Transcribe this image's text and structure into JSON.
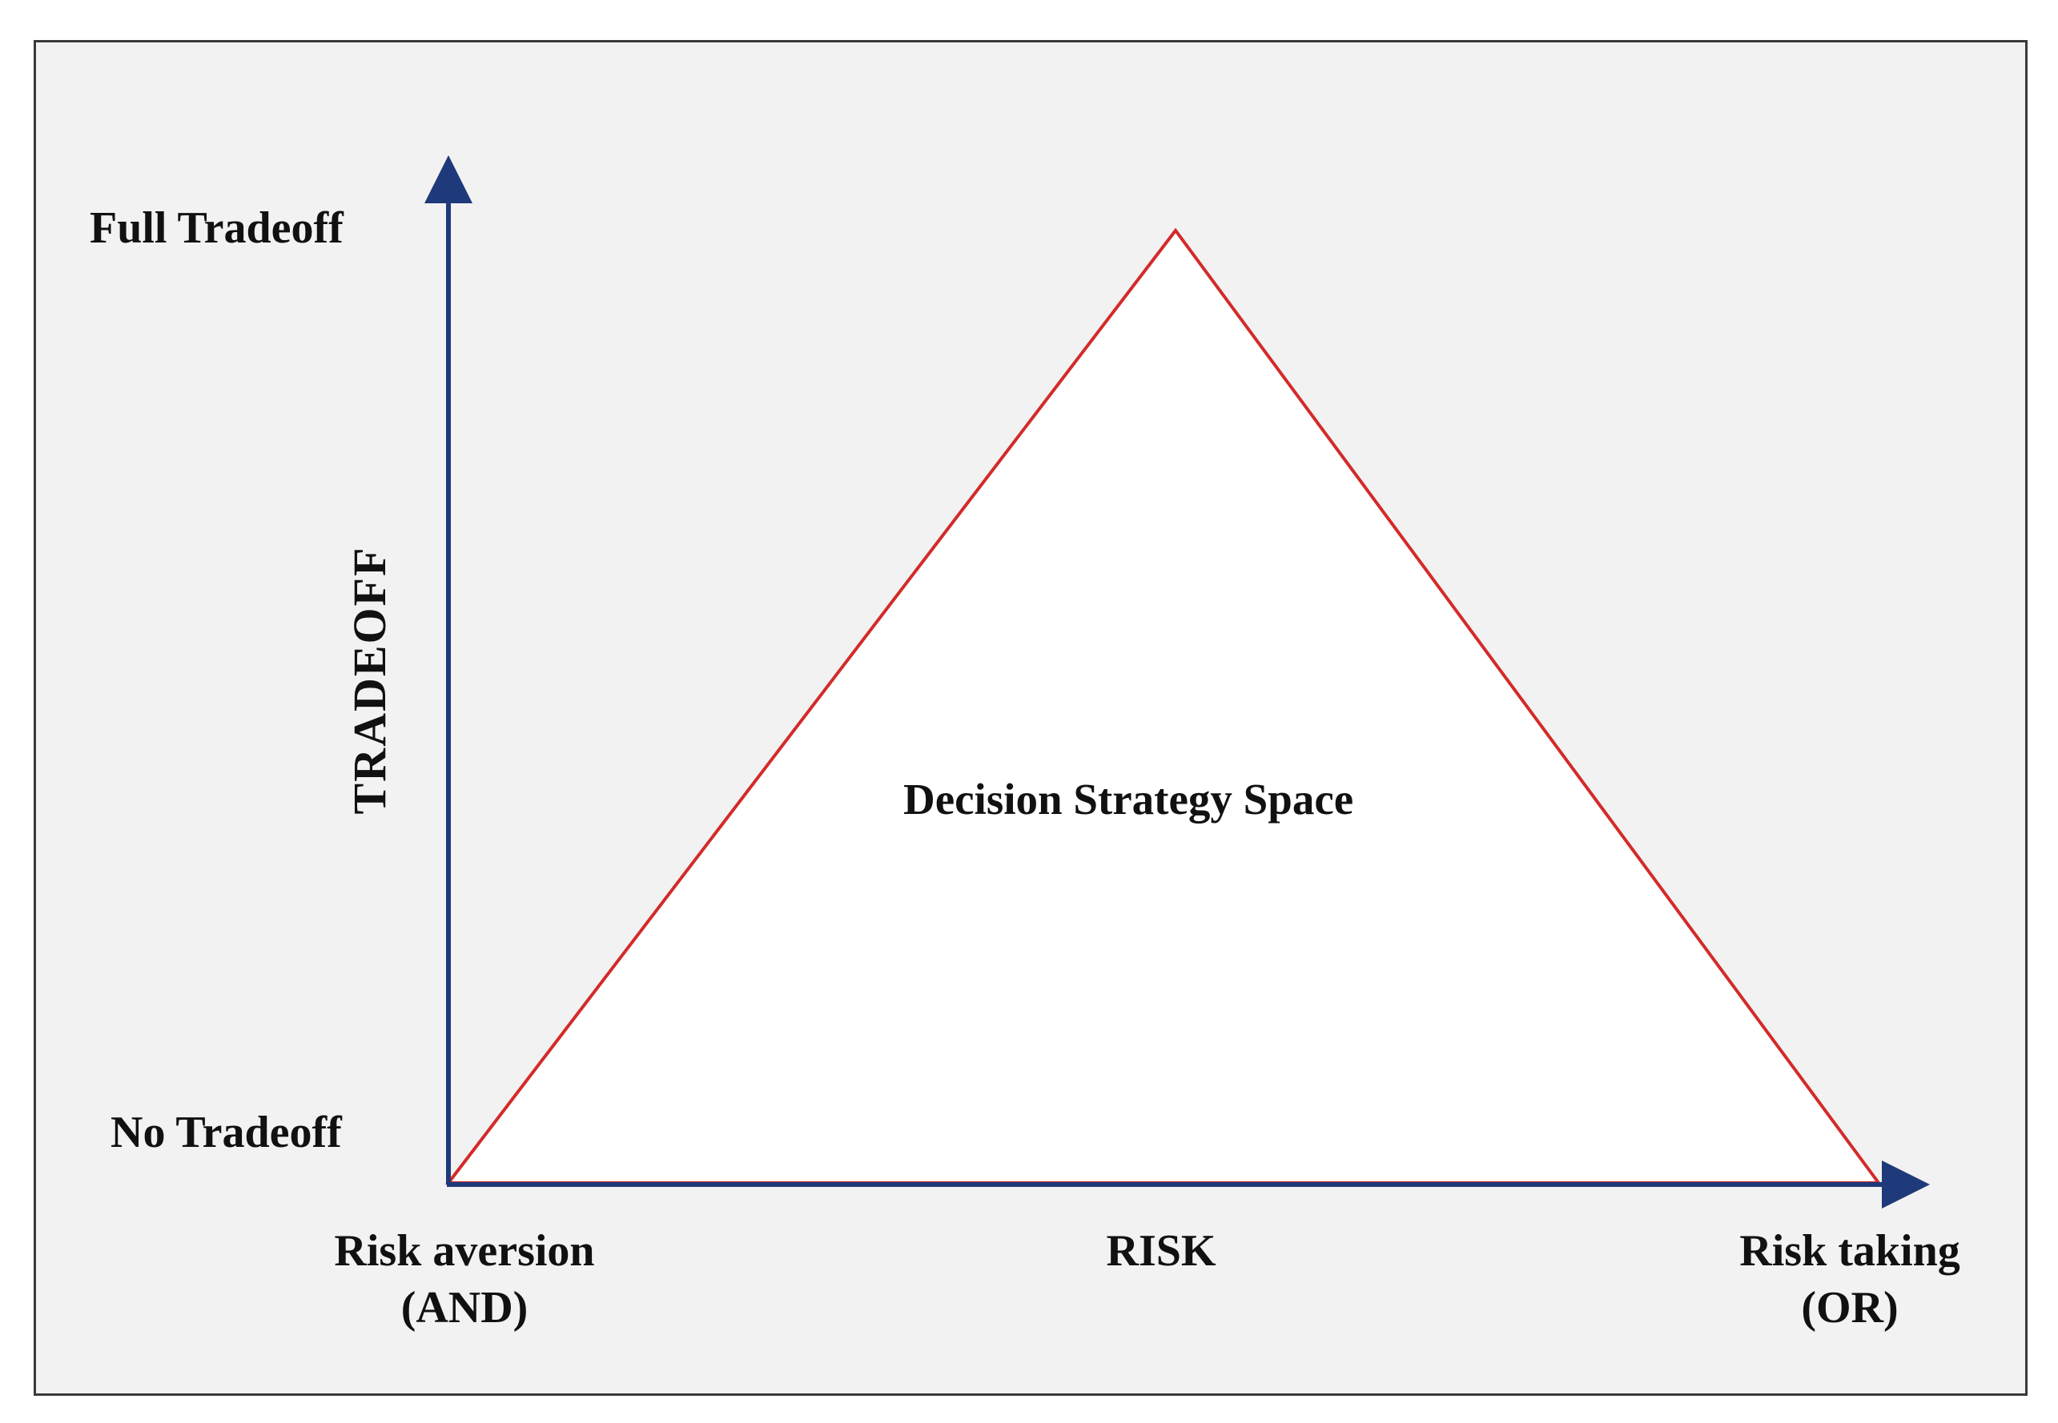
{
  "labels": {
    "y_top": "Full Tradeoff",
    "y_bottom": "No Tradeoff",
    "y_axis": "TRADEOFF",
    "x_left_line1": "Risk aversion",
    "x_left_line2": "(AND)",
    "x_axis": "RISK",
    "x_right_line1": "Risk taking",
    "x_right_line2": "(OR)",
    "region": "Decision Strategy Space"
  },
  "colors": {
    "axis": "#1f3a7a",
    "triangle_stroke": "#d42a2a",
    "triangle_fill": "#ffffff",
    "panel_background": "#f2f2f2"
  }
}
